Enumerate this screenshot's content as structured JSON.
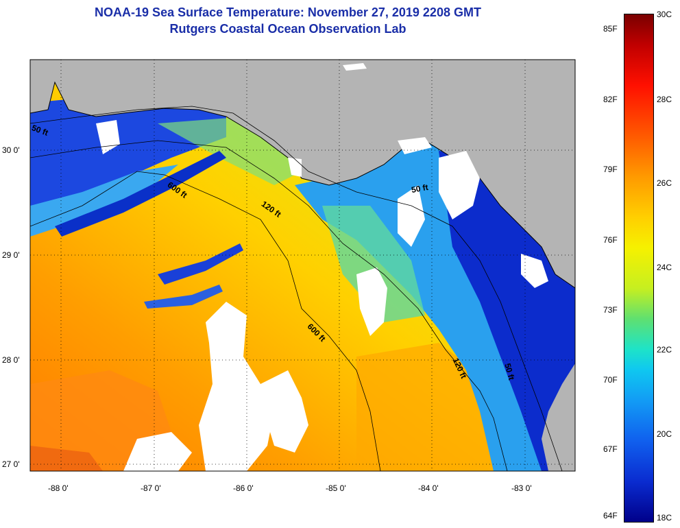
{
  "title": {
    "line1": "NOAA-19 Sea Surface Temperature:  November 27, 2019 2208 GMT",
    "line2": "Rutgers Coastal Ocean Observation Lab"
  },
  "map": {
    "y_ticks": [
      {
        "label": "30 0'",
        "lat": 30
      },
      {
        "label": "29 0'",
        "lat": 29
      },
      {
        "label": "28 0'",
        "lat": 28
      },
      {
        "label": "27 0'",
        "lat": 27
      }
    ],
    "x_ticks": [
      {
        "label": "-88 0'",
        "lon": -88
      },
      {
        "label": "-87 0'",
        "lon": -87
      },
      {
        "label": "-86 0'",
        "lon": -86
      },
      {
        "label": "-85 0'",
        "lon": -85
      },
      {
        "label": "-84 0'",
        "lon": -84
      },
      {
        "label": "-83 0'",
        "lon": -83
      }
    ],
    "contour_labels": [
      "50 ft",
      "600 ft",
      "120 ft",
      "50 ft",
      "600 ft",
      "120 ft",
      "50 ft"
    ],
    "land_color": "#b4b4b4",
    "cloud_color": "#ffffff"
  },
  "colorbar": {
    "fahrenheit_labels": [
      "85F",
      "82F",
      "79F",
      "76F",
      "73F",
      "70F",
      "67F",
      "64F"
    ],
    "celsius_labels": [
      "30C",
      "28C",
      "26C",
      "24C",
      "22C",
      "20C",
      "18C"
    ]
  }
}
